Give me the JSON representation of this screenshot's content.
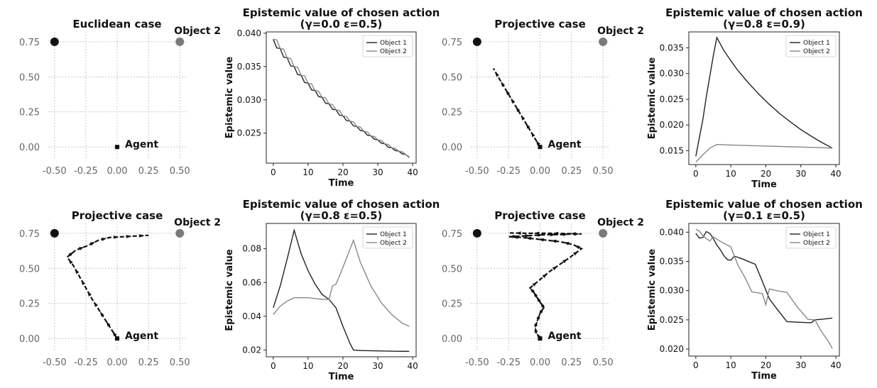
{
  "chart_data": [
    {
      "type": "scatter",
      "title": "Euclidean case",
      "xlim": [
        -0.55,
        0.55
      ],
      "ylim": [
        -0.08,
        0.82
      ],
      "xticks": [
        -0.5,
        -0.25,
        0.0,
        0.25,
        0.5
      ],
      "xtick_labels": [
        "-0.50",
        "-0.25",
        "0.00",
        "0.25",
        "0.50"
      ],
      "yticks": [
        0.0,
        0.25,
        0.5,
        0.75
      ],
      "ytick_labels": [
        "0.00",
        "0.25",
        "0.50",
        "0.75"
      ],
      "grid": true,
      "objects": [
        {
          "label": "",
          "x": -0.5,
          "y": 0.75,
          "color": "#111111"
        },
        {
          "label": "Object 2",
          "x": 0.5,
          "y": 0.75,
          "color": "#7a7a7a"
        }
      ],
      "agent": {
        "label": "Agent",
        "x": 0.0,
        "y": 0.0
      },
      "trajectory": []
    },
    {
      "type": "line",
      "title": "Epistemic value of chosen action",
      "subtitle": "(γ=0.0 ε=0.5)",
      "xlabel": "Time",
      "ylabel": "Epistemic value",
      "xlim": [
        -2,
        41
      ],
      "ylim": [
        0.0205,
        0.0402
      ],
      "xticks": [
        0,
        10,
        20,
        30,
        40
      ],
      "xtick_labels": [
        "0",
        "10",
        "20",
        "30",
        "40"
      ],
      "yticks": [
        0.025,
        0.03,
        0.035,
        0.04
      ],
      "ytick_labels": [
        "0.025",
        "0.030",
        "0.035",
        "0.040"
      ],
      "legend": "top-right",
      "series": [
        {
          "name": "Object 1",
          "color": "#222222",
          "x": [
            0,
            1,
            2,
            3,
            4,
            5,
            6,
            7,
            8,
            9,
            10,
            11,
            12,
            13,
            14,
            15,
            16,
            17,
            18,
            19,
            20,
            21,
            22,
            23,
            24,
            25,
            26,
            27,
            28,
            29,
            30,
            31,
            32,
            33,
            34,
            35,
            36,
            37,
            38,
            39
          ],
          "values": [
            0.0391,
            0.0378,
            0.0377,
            0.0364,
            0.0363,
            0.0351,
            0.035,
            0.0338,
            0.0337,
            0.0326,
            0.0325,
            0.0315,
            0.0314,
            0.0305,
            0.0304,
            0.0295,
            0.0294,
            0.0286,
            0.0285,
            0.0277,
            0.0276,
            0.0269,
            0.0268,
            0.0261,
            0.026,
            0.0254,
            0.0253,
            0.0247,
            0.0246,
            0.0241,
            0.024,
            0.0235,
            0.0234,
            0.0229,
            0.0228,
            0.0224,
            0.0223,
            0.0219,
            0.0218,
            0.0214
          ]
        },
        {
          "name": "Object 2",
          "color": "#888888",
          "x": [
            0,
            1,
            2,
            3,
            4,
            5,
            6,
            7,
            8,
            9,
            10,
            11,
            12,
            13,
            14,
            15,
            16,
            17,
            18,
            19,
            20,
            21,
            22,
            23,
            24,
            25,
            26,
            27,
            28,
            29,
            30,
            31,
            32,
            33,
            34,
            35,
            36,
            37,
            38,
            39
          ],
          "values": [
            0.0391,
            0.039,
            0.0377,
            0.0376,
            0.0363,
            0.0362,
            0.035,
            0.0349,
            0.0337,
            0.0336,
            0.0325,
            0.0324,
            0.0314,
            0.0313,
            0.0304,
            0.0303,
            0.0294,
            0.0293,
            0.0285,
            0.0284,
            0.0276,
            0.0275,
            0.0268,
            0.0267,
            0.026,
            0.0259,
            0.0253,
            0.0252,
            0.0246,
            0.0245,
            0.024,
            0.0239,
            0.0234,
            0.0233,
            0.0228,
            0.0227,
            0.0223,
            0.0222,
            0.0218,
            0.0213
          ]
        }
      ]
    },
    {
      "type": "scatter",
      "title": "Projective case",
      "xlim": [
        -0.55,
        0.55
      ],
      "ylim": [
        -0.08,
        0.82
      ],
      "xticks": [
        -0.5,
        -0.25,
        0.0,
        0.25,
        0.5
      ],
      "xtick_labels": [
        "-0.50",
        "-0.25",
        "0.00",
        "0.25",
        "0.50"
      ],
      "yticks": [
        0.0,
        0.25,
        0.5,
        0.75
      ],
      "ytick_labels": [
        "0.00",
        "0.25",
        "0.50",
        "0.75"
      ],
      "grid": true,
      "objects": [
        {
          "label": "",
          "x": -0.5,
          "y": 0.75,
          "color": "#111111"
        },
        {
          "label": "Object 2",
          "x": 0.5,
          "y": 0.75,
          "color": "#7a7a7a"
        }
      ],
      "agent": {
        "label": "Agent",
        "x": 0.0,
        "y": 0.0
      },
      "trajectory": [
        [
          0.0,
          0.0
        ],
        [
          -0.04,
          0.06
        ],
        [
          -0.08,
          0.12
        ],
        [
          -0.12,
          0.18
        ],
        [
          -0.16,
          0.24
        ],
        [
          -0.2,
          0.3
        ],
        [
          -0.24,
          0.36
        ],
        [
          -0.28,
          0.42
        ],
        [
          -0.32,
          0.48
        ],
        [
          -0.37,
          0.56
        ]
      ]
    },
    {
      "type": "line",
      "title": "Epistemic value of chosen action",
      "subtitle": "(γ=0.8 ε=0.9)",
      "xlabel": "Time",
      "ylabel": "Epistemic value",
      "xlim": [
        -2,
        41
      ],
      "ylim": [
        0.0123,
        0.0381
      ],
      "xticks": [
        0,
        10,
        20,
        30,
        40
      ],
      "xtick_labels": [
        "0",
        "10",
        "20",
        "30",
        "40"
      ],
      "yticks": [
        0.015,
        0.02,
        0.025,
        0.03,
        0.035
      ],
      "ytick_labels": [
        "0.015",
        "0.020",
        "0.025",
        "0.030",
        "0.035"
      ],
      "legend": "top-right",
      "series": [
        {
          "name": "Object 1",
          "color": "#222222",
          "x": [
            0,
            1,
            2,
            3,
            4,
            5,
            6,
            8,
            10,
            12,
            15,
            18,
            21,
            24,
            27,
            30,
            33,
            36,
            39
          ],
          "values": [
            0.0139,
            0.0175,
            0.021,
            0.0255,
            0.0295,
            0.0335,
            0.037,
            0.0345,
            0.0325,
            0.0306,
            0.0282,
            0.026,
            0.024,
            0.0222,
            0.0206,
            0.0191,
            0.0178,
            0.0166,
            0.0155
          ]
        },
        {
          "name": "Object 2",
          "color": "#888888",
          "x": [
            0,
            2,
            4,
            6,
            10,
            15,
            20,
            25,
            30,
            35,
            39
          ],
          "values": [
            0.0128,
            0.0142,
            0.0155,
            0.0162,
            0.0161,
            0.016,
            0.0159,
            0.0158,
            0.0157,
            0.0156,
            0.0155
          ]
        }
      ]
    },
    {
      "type": "scatter",
      "title": "Projective case",
      "xlim": [
        -0.55,
        0.55
      ],
      "ylim": [
        -0.08,
        0.82
      ],
      "xticks": [
        -0.5,
        -0.25,
        0.0,
        0.25,
        0.5
      ],
      "xtick_labels": [
        "-0.50",
        "-0.25",
        "0.00",
        "0.25",
        "0.50"
      ],
      "yticks": [
        0.0,
        0.25,
        0.5,
        0.75
      ],
      "ytick_labels": [
        "0.00",
        "0.25",
        "0.50",
        "0.75"
      ],
      "grid": true,
      "objects": [
        {
          "label": "",
          "x": -0.5,
          "y": 0.75,
          "color": "#111111"
        },
        {
          "label": "Object 2",
          "x": 0.5,
          "y": 0.75,
          "color": "#7a7a7a"
        }
      ],
      "agent": {
        "label": "Agent",
        "x": 0.0,
        "y": 0.0
      },
      "trajectory": [
        [
          0.0,
          0.0
        ],
        [
          -0.05,
          0.07
        ],
        [
          -0.1,
          0.14
        ],
        [
          -0.15,
          0.21
        ],
        [
          -0.2,
          0.28
        ],
        [
          -0.25,
          0.36
        ],
        [
          -0.3,
          0.44
        ],
        [
          -0.35,
          0.52
        ],
        [
          -0.4,
          0.58
        ],
        [
          -0.33,
          0.63
        ],
        [
          -0.24,
          0.66
        ],
        [
          -0.15,
          0.7
        ],
        [
          -0.06,
          0.72
        ],
        [
          0.04,
          0.725
        ],
        [
          0.14,
          0.73
        ],
        [
          0.25,
          0.735
        ]
      ]
    },
    {
      "type": "line",
      "title": "Epistemic value of chosen action",
      "subtitle": "(γ=0.8 ε=0.5)",
      "xlabel": "Time",
      "ylabel": "Epistemic value",
      "xlim": [
        -2,
        41
      ],
      "ylim": [
        0.016,
        0.095
      ],
      "xticks": [
        0,
        10,
        20,
        30,
        40
      ],
      "xtick_labels": [
        "0",
        "10",
        "20",
        "30",
        "40"
      ],
      "yticks": [
        0.02,
        0.04,
        0.06,
        0.08
      ],
      "ytick_labels": [
        "0.02",
        "0.04",
        "0.06",
        "0.08"
      ],
      "legend": "top-right",
      "series": [
        {
          "name": "Object 1",
          "color": "#222222",
          "x": [
            0,
            2,
            4,
            6,
            8,
            10,
            12,
            14,
            16,
            18,
            20,
            22,
            23,
            25,
            30,
            35,
            39
          ],
          "values": [
            0.045,
            0.058,
            0.074,
            0.091,
            0.077,
            0.067,
            0.059,
            0.053,
            0.05,
            0.045,
            0.034,
            0.024,
            0.02,
            0.0197,
            0.0195,
            0.0193,
            0.0192
          ]
        },
        {
          "name": "Object 2",
          "color": "#888888",
          "x": [
            0,
            2,
            4,
            6,
            8,
            10,
            14,
            16,
            17,
            18,
            20,
            23,
            25,
            28,
            31,
            34,
            37,
            39
          ],
          "values": [
            0.041,
            0.046,
            0.049,
            0.051,
            0.051,
            0.051,
            0.05,
            0.05,
            0.058,
            0.059,
            0.069,
            0.085,
            0.072,
            0.058,
            0.048,
            0.041,
            0.036,
            0.034
          ]
        }
      ]
    },
    {
      "type": "scatter",
      "title": "Projective case",
      "xlim": [
        -0.55,
        0.55
      ],
      "ylim": [
        -0.08,
        0.82
      ],
      "xticks": [
        -0.5,
        -0.25,
        0.0,
        0.25,
        0.5
      ],
      "xtick_labels": [
        "-0.50",
        "-0.25",
        "0.00",
        "0.25",
        "0.50"
      ],
      "yticks": [
        0.0,
        0.25,
        0.5,
        0.75
      ],
      "ytick_labels": [
        "0.00",
        "0.25",
        "0.50",
        "0.75"
      ],
      "grid": true,
      "objects": [
        {
          "label": "",
          "x": -0.5,
          "y": 0.75,
          "color": "#111111"
        },
        {
          "label": "Object 2",
          "x": 0.5,
          "y": 0.75,
          "color": "#7a7a7a"
        }
      ],
      "agent": {
        "label": "Agent",
        "x": 0.0,
        "y": 0.0
      },
      "trajectory": [
        [
          0.0,
          0.0
        ],
        [
          -0.03,
          0.04
        ],
        [
          -0.04,
          0.08
        ],
        [
          -0.02,
          0.13
        ],
        [
          0.0,
          0.18
        ],
        [
          0.03,
          0.22
        ],
        [
          0.0,
          0.26
        ],
        [
          -0.03,
          0.3
        ],
        [
          -0.05,
          0.33
        ],
        [
          -0.08,
          0.36
        ],
        [
          0.0,
          0.42
        ],
        [
          0.08,
          0.48
        ],
        [
          0.16,
          0.53
        ],
        [
          0.24,
          0.58
        ],
        [
          0.33,
          0.64
        ],
        [
          0.26,
          0.67
        ],
        [
          0.16,
          0.69
        ],
        [
          0.06,
          0.7
        ],
        [
          -0.04,
          0.71
        ],
        [
          -0.14,
          0.72
        ],
        [
          -0.25,
          0.725
        ],
        [
          -0.15,
          0.73
        ],
        [
          -0.05,
          0.735
        ],
        [
          0.05,
          0.74
        ],
        [
          0.15,
          0.74
        ],
        [
          0.25,
          0.745
        ],
        [
          0.33,
          0.745
        ],
        [
          0.2,
          0.748
        ],
        [
          0.05,
          0.75
        ],
        [
          -0.1,
          0.75
        ],
        [
          -0.24,
          0.752
        ]
      ]
    },
    {
      "type": "line",
      "title": "Epistemic value of chosen action",
      "subtitle": "(γ=0.1 ε=0.5)",
      "xlabel": "Time",
      "ylabel": "Epistemic value",
      "xlim": [
        -2,
        41
      ],
      "ylim": [
        0.0188,
        0.0415
      ],
      "xticks": [
        0,
        10,
        20,
        30,
        40
      ],
      "xtick_labels": [
        "0",
        "10",
        "20",
        "30",
        "40"
      ],
      "yticks": [
        0.02,
        0.025,
        0.03,
        0.035,
        0.04
      ],
      "ytick_labels": [
        "0.020",
        "0.025",
        "0.030",
        "0.035",
        "0.040"
      ],
      "legend": "top-right",
      "series": [
        {
          "name": "Object 1",
          "color": "#222222",
          "x": [
            0,
            1,
            2,
            3,
            4,
            5,
            6,
            7,
            8,
            9,
            10,
            11,
            13,
            15,
            17,
            19,
            21,
            23,
            26,
            29,
            33,
            34,
            36,
            39
          ],
          "values": [
            0.0398,
            0.039,
            0.0391,
            0.0401,
            0.0398,
            0.0389,
            0.0378,
            0.037,
            0.036,
            0.0353,
            0.0352,
            0.0359,
            0.0355,
            0.035,
            0.0345,
            0.0316,
            0.0286,
            0.027,
            0.0247,
            0.0246,
            0.0245,
            0.025,
            0.0251,
            0.0253
          ]
        },
        {
          "name": "Object 2",
          "color": "#888888",
          "x": [
            0,
            1,
            2,
            3,
            4,
            5,
            6,
            8,
            10,
            12,
            14,
            16,
            18,
            19,
            20,
            21,
            23,
            26,
            29,
            32,
            34,
            36,
            38,
            39
          ],
          "values": [
            0.0405,
            0.0402,
            0.0394,
            0.0389,
            0.0385,
            0.0392,
            0.0388,
            0.0381,
            0.0375,
            0.0344,
            0.0323,
            0.0298,
            0.0296,
            0.0295,
            0.0276,
            0.0303,
            0.03,
            0.0297,
            0.0272,
            0.0251,
            0.025,
            0.0229,
            0.0212,
            0.0201
          ]
        }
      ]
    }
  ]
}
